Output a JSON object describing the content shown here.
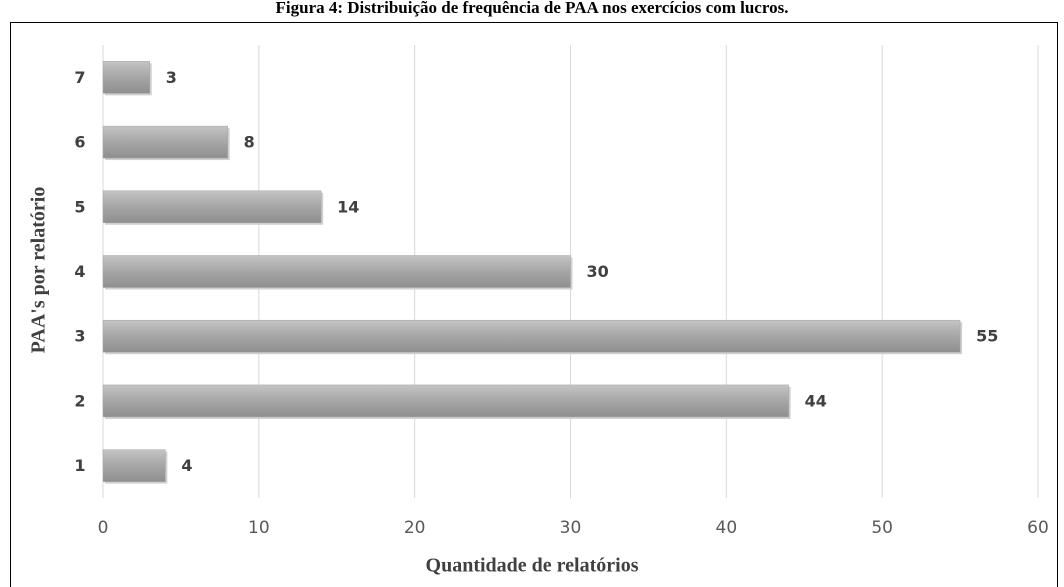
{
  "chart_data": {
    "type": "bar",
    "orientation": "horizontal",
    "title": "Figura 4: Distribuição de frequência de PAA nos exercícios com lucros.",
    "xlabel": "Quantidade de relatórios",
    "ylabel": "PAA's por relatório",
    "categories": [
      "1",
      "2",
      "3",
      "4",
      "5",
      "6",
      "7"
    ],
    "values": [
      4,
      44,
      55,
      30,
      14,
      8,
      3
    ],
    "color": "#a6a6a6",
    "xlim": [
      0,
      60
    ],
    "xticks": [
      0,
      10,
      20,
      30,
      40,
      50,
      60
    ],
    "grid": true
  }
}
